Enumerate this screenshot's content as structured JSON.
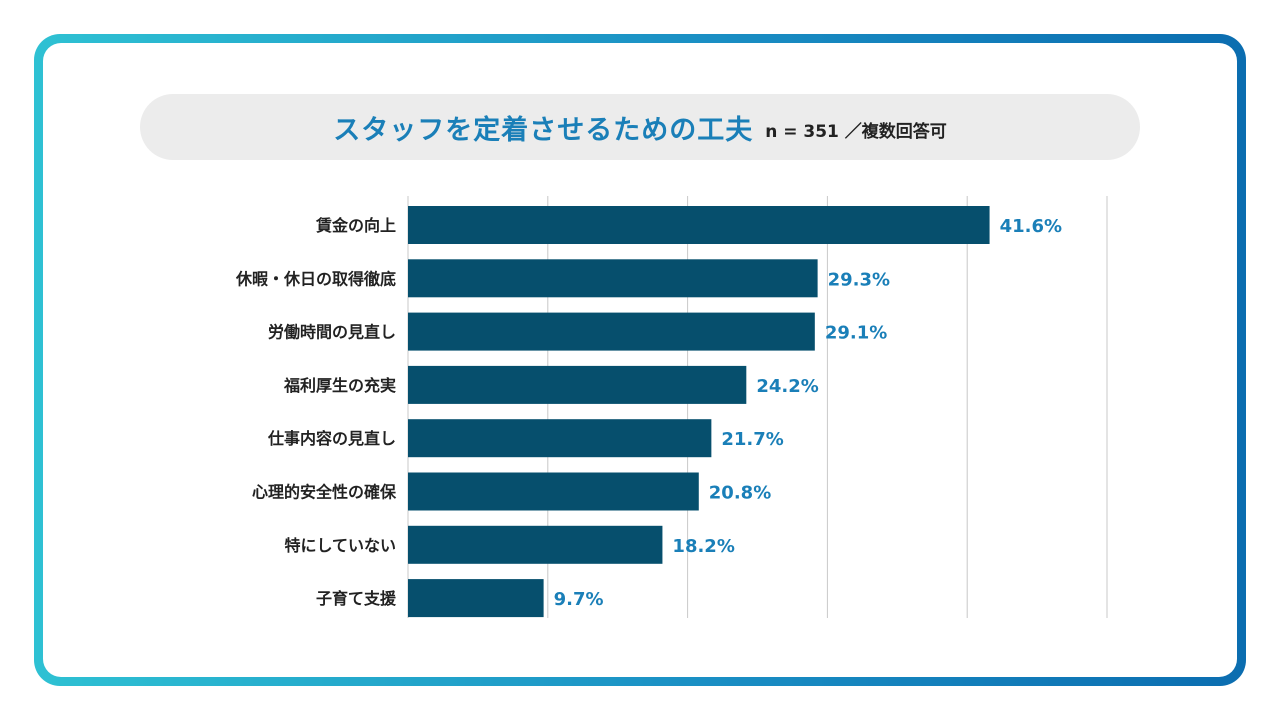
{
  "title": {
    "main": "スタッフを定着させるための工夫",
    "sub": "n = 351 ／複数回答可"
  },
  "colors": {
    "bar": "#064f6d",
    "value_text": "#1a7fb8",
    "grid": "#c8c8c8"
  },
  "chart_data": {
    "type": "bar",
    "orientation": "horizontal",
    "categories": [
      "賃金の向上",
      "休暇・休日の取得徹底",
      "労働時間の見直し",
      "福利厚生の充実",
      "仕事内容の見直し",
      "心理的安全性の確保",
      "特にしていない",
      "子育て支援"
    ],
    "values": [
      41.6,
      29.3,
      29.1,
      24.2,
      21.7,
      20.8,
      18.2,
      9.7
    ],
    "value_labels": [
      "41.6%",
      "29.3%",
      "29.1%",
      "24.2%",
      "21.7%",
      "20.8%",
      "18.2%",
      "9.7%"
    ],
    "xlim": [
      0,
      50
    ],
    "grid": true,
    "title": "スタッフを定着させるための工夫",
    "xlabel": "",
    "ylabel": ""
  }
}
